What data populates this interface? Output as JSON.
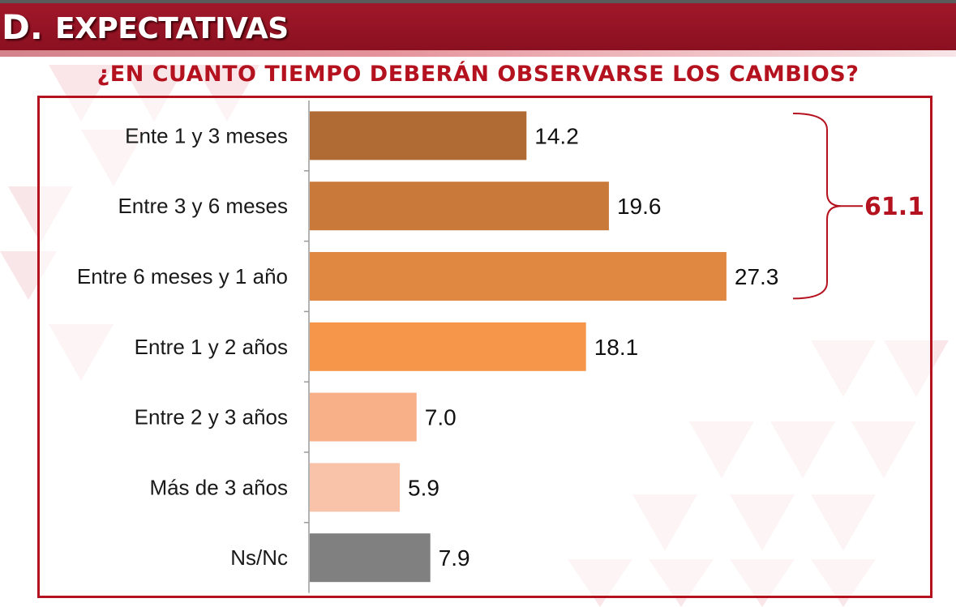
{
  "header": {
    "section_letter": "D.",
    "section_title": "EXPECTATIVAS"
  },
  "question": "¿EN CUANTO TIEMPO DEBERÁN OBSERVARSE LOS CAMBIOS?",
  "colors": {
    "header_band": "#8a1020",
    "accent_red": "#b5121f",
    "bar_colors": [
      "#b06a33",
      "#c97a3b",
      "#e08842",
      "#f5964a",
      "#f7b088",
      "#f8c3a8",
      "#808080"
    ]
  },
  "chart_data": {
    "type": "bar",
    "orientation": "horizontal",
    "categories": [
      "Ente 1 y 3 meses",
      "Entre 3 y 6 meses",
      "Entre 6 meses y 1 año",
      "Entre 1 y 2 años",
      "Entre 2 y 3 años",
      "Más de 3 años",
      "Ns/Nc"
    ],
    "values": [
      14.2,
      19.6,
      27.3,
      18.1,
      7.0,
      5.9,
      7.9
    ],
    "value_labels": [
      "14.2",
      "19.6",
      "27.3",
      "18.1",
      "7.0",
      "5.9",
      "7.9"
    ],
    "xlim": [
      0,
      34
    ],
    "grid": false,
    "bracket": {
      "from_category": 0,
      "to_category": 2,
      "label": "61.1"
    }
  }
}
